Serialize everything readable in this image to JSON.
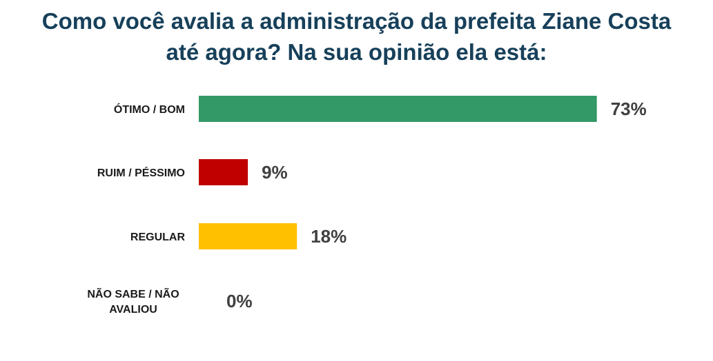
{
  "chart_data": {
    "type": "bar",
    "orientation": "horizontal",
    "title": "Como você avalia a administração da prefeita Ziane Costa\naté agora? Na sua opinião ela está:",
    "categories": [
      "ÓTIMO / BOM",
      "RUIM / PÉSSIMO",
      "REGULAR",
      "NÃO SABE / NÃO\nAVALIOU"
    ],
    "values": [
      73,
      9,
      18,
      0
    ],
    "value_labels": [
      "73%",
      "9%",
      "18%",
      "0%"
    ],
    "colors": [
      "#339966",
      "#c00000",
      "#ffc000",
      "#ffffff"
    ],
    "xlim": [
      0,
      100
    ],
    "grid": false,
    "legend": "none"
  }
}
